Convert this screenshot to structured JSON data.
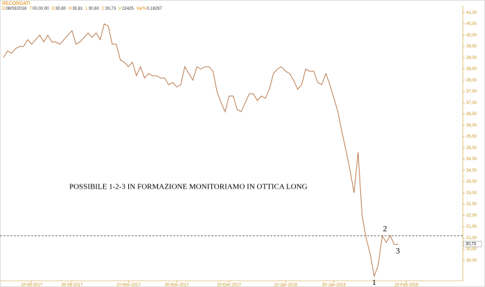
{
  "chart_data": {
    "type": "line",
    "title": "RECORDATI",
    "info": [
      {
        "key": "D",
        "value": "08/03/2018"
      },
      {
        "key": "T",
        "value": "00.00.00"
      },
      {
        "key": "O",
        "value": "30,80"
      },
      {
        "key": "H",
        "value": "30,81"
      },
      {
        "key": "L",
        "value": "30,60"
      },
      {
        "key": "C",
        "value": "30,73"
      },
      {
        "key": "V",
        "value": "22425"
      },
      {
        "key": "Var%",
        "value": "0,16297"
      }
    ],
    "last_price": {
      "value": 30.73,
      "label": "30,73"
    },
    "annotation": "POSSIBILE 1-2-3 IN FORMAZIONE MONITORIAMO IN OTTICA LONG",
    "points": [
      {
        "label": "1",
        "index": 92,
        "value": 29.3
      },
      {
        "label": "2",
        "index": 94,
        "value": 31.1
      },
      {
        "label": "3",
        "index": 97,
        "value": 30.7
      }
    ],
    "hline": 31.1,
    "color": "#b8784a",
    "values": [
      39.0,
      39.3,
      39.2,
      39.4,
      39.5,
      39.5,
      39.8,
      39.6,
      39.8,
      40.0,
      39.7,
      40.0,
      39.7,
      39.7,
      39.6,
      39.8,
      40.0,
      40.2,
      39.6,
      39.7,
      39.9,
      40.1,
      39.9,
      40.1,
      39.8,
      40.5,
      40.4,
      39.6,
      39.6,
      38.9,
      38.8,
      38.6,
      38.8,
      38.2,
      38.6,
      38.1,
      38.3,
      38.2,
      38.2,
      38.1,
      38.1,
      37.8,
      37.9,
      37.7,
      37.8,
      38.6,
      38.3,
      38.0,
      38.6,
      38.5,
      38.6,
      38.6,
      38.4,
      37.5,
      37.0,
      36.6,
      37.3,
      37.3,
      36.7,
      36.6,
      37.0,
      37.4,
      37.4,
      37.1,
      37.3,
      37.2,
      37.6,
      38.3,
      38.5,
      38.6,
      38.4,
      38.3,
      38.0,
      37.6,
      37.8,
      38.5,
      38.4,
      38.4,
      37.9,
      37.8,
      38.3,
      37.8,
      37.2,
      36.6,
      35.7,
      34.9,
      34.0,
      33.0,
      34.8,
      32.0,
      31.0,
      30.3,
      29.3,
      29.8,
      31.1,
      30.8,
      31.1,
      30.7,
      30.73
    ],
    "xlim": [
      0,
      114
    ],
    "xticks": [
      {
        "value": 7,
        "label": "10-08-2017"
      },
      {
        "value": 17,
        "label": "30-08-2017"
      },
      {
        "value": 31,
        "label": "10-Nov-2017"
      },
      {
        "value": 43,
        "label": "30-Nov-2017"
      },
      {
        "value": 56,
        "label": "20-Dec-2017"
      },
      {
        "value": 70,
        "label": "10-Jan-2018"
      },
      {
        "value": 82,
        "label": "30-Jan-2018"
      },
      {
        "value": 100,
        "label": "20-Feb-2018"
      }
    ],
    "ylim": [
      29.1,
      41.2
    ],
    "yticks": [
      {
        "value": 30,
        "label": "30,00"
      },
      {
        "value": 30.5,
        "label": "30,50"
      },
      {
        "value": 31,
        "label": "31,00"
      },
      {
        "value": 31.5,
        "label": "31,50"
      },
      {
        "value": 32,
        "label": "32,00"
      },
      {
        "value": 32.5,
        "label": "32,50"
      },
      {
        "value": 33,
        "label": "33,00"
      },
      {
        "value": 33.5,
        "label": "33,50"
      },
      {
        "value": 34,
        "label": "34,00"
      },
      {
        "value": 34.5,
        "label": "34,50"
      },
      {
        "value": 35,
        "label": "35,00"
      },
      {
        "value": 35.5,
        "label": "35,50"
      },
      {
        "value": 36,
        "label": "36,00"
      },
      {
        "value": 36.5,
        "label": "36,50"
      },
      {
        "value": 37,
        "label": "37,00"
      },
      {
        "value": 37.5,
        "label": "37,50"
      },
      {
        "value": 38,
        "label": "38,00"
      },
      {
        "value": 38.5,
        "label": "38,50"
      },
      {
        "value": 39,
        "label": "39,00"
      },
      {
        "value": 39.5,
        "label": "39,50"
      },
      {
        "value": 40,
        "label": "40,00"
      },
      {
        "value": 40.5,
        "label": "40,50"
      },
      {
        "value": 41,
        "label": "41,00"
      }
    ]
  }
}
